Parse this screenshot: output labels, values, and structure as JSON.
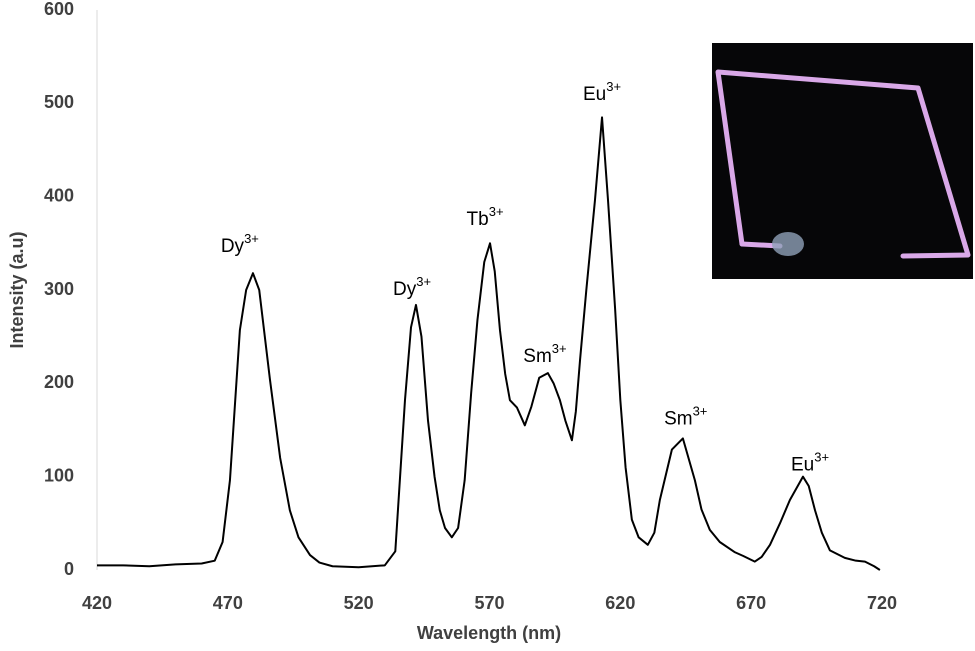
{
  "chart_data": {
    "type": "line",
    "x_label": "Wavelength (nm)",
    "y_label": "Intensity (a.u)",
    "xlim": [
      420,
      720
    ],
    "xticks": [
      420,
      470,
      520,
      570,
      620,
      670,
      720
    ],
    "ylim": [
      0,
      600
    ],
    "yticks": [
      0,
      100,
      200,
      300,
      400,
      500,
      600
    ],
    "grid": false,
    "series": [
      {
        "color": "#000000",
        "x": [
          420,
          430,
          440,
          450,
          460,
          465,
          468,
          470.8,
          474.6,
          477,
          479.6,
          482,
          486.1,
          490,
          493.7,
          497,
          501.4,
          505,
          510,
          520,
          530,
          534,
          537.7,
          540,
          541.9,
          544,
          546.5,
          549,
          551,
          553,
          555.6,
          558,
          560.5,
          563,
          565.4,
          568,
          570.2,
          572,
          574,
          576,
          577.8,
          580.5,
          583.5,
          586,
          589,
          592.3,
          594.5,
          596.9,
          599,
          601.5,
          603,
          604.6,
          607,
          610.3,
          613,
          615.3,
          618,
          620,
          622,
          624.4,
          627,
          630.5,
          633,
          635.1,
          639.7,
          643.9,
          648.5,
          651,
          654.2,
          658,
          663.8,
          667,
          671.4,
          674,
          677.2,
          681,
          684.8,
          689.8,
          692,
          694.4,
          697,
          700.1,
          705.8,
          710,
          713.5,
          717,
          719.2
        ],
        "values": [
          5,
          5,
          4,
          6,
          7,
          10,
          30,
          96,
          257,
          300,
          318,
          300,
          204,
          120,
          64,
          35,
          16,
          8,
          4,
          3,
          5,
          20,
          182,
          260,
          284,
          250,
          160,
          100,
          64,
          45,
          35,
          45,
          96,
          190,
          268,
          330,
          350,
          320,
          257,
          210,
          182,
          174,
          155,
          175,
          206,
          211,
          200,
          182,
          160,
          139,
          170,
          225,
          300,
          396,
          485,
          396,
          280,
          182,
          110,
          54,
          35,
          27,
          40,
          75,
          129,
          141,
          96,
          65,
          43,
          30,
          19,
          15,
          9,
          14,
          27,
          50,
          75,
          100,
          90,
          64,
          40,
          21,
          13,
          10,
          9,
          4,
          0
        ]
      }
    ],
    "annotations": [
      {
        "text": "Dy",
        "sup": "3+",
        "x": 474.6,
        "y": 346
      },
      {
        "text": "Dy",
        "sup": "3+",
        "x": 540.4,
        "y": 300
      },
      {
        "text": "Tb",
        "sup": "3+",
        "x": 568.3,
        "y": 375
      },
      {
        "text": "Sm",
        "sup": "3+",
        "x": 591.2,
        "y": 228
      },
      {
        "text": "Eu",
        "sup": "3+",
        "x": 613,
        "y": 509
      },
      {
        "text": "Sm",
        "sup": "3+",
        "x": 645,
        "y": 161
      },
      {
        "text": "Eu",
        "sup": "3+",
        "x": 692.5,
        "y": 112
      }
    ]
  }
}
